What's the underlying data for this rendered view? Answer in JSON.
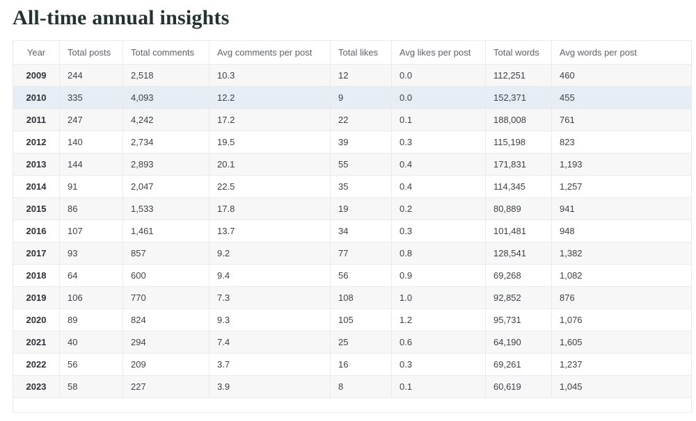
{
  "page": {
    "title": "All-time annual insights"
  },
  "chart_data": {
    "type": "table",
    "title": "All-time annual insights",
    "columns": [
      "Year",
      "Total posts",
      "Total comments",
      "Avg comments per post",
      "Total likes",
      "Avg likes per post",
      "Total words",
      "Avg words per post"
    ],
    "rows": [
      [
        "2009",
        "244",
        "2,518",
        "10.3",
        "12",
        "0.0",
        "112,251",
        "460"
      ],
      [
        "2010",
        "335",
        "4,093",
        "12.2",
        "9",
        "0.0",
        "152,371",
        "455"
      ],
      [
        "2011",
        "247",
        "4,242",
        "17.2",
        "22",
        "0.1",
        "188,008",
        "761"
      ],
      [
        "2012",
        "140",
        "2,734",
        "19.5",
        "39",
        "0.3",
        "115,198",
        "823"
      ],
      [
        "2013",
        "144",
        "2,893",
        "20.1",
        "55",
        "0.4",
        "171,831",
        "1,193"
      ],
      [
        "2014",
        "91",
        "2,047",
        "22.5",
        "35",
        "0.4",
        "114,345",
        "1,257"
      ],
      [
        "2015",
        "86",
        "1,533",
        "17.8",
        "19",
        "0.2",
        "80,889",
        "941"
      ],
      [
        "2016",
        "107",
        "1,461",
        "13.7",
        "34",
        "0.3",
        "101,481",
        "948"
      ],
      [
        "2017",
        "93",
        "857",
        "9.2",
        "77",
        "0.8",
        "128,541",
        "1,382"
      ],
      [
        "2018",
        "64",
        "600",
        "9.4",
        "56",
        "0.9",
        "69,268",
        "1,082"
      ],
      [
        "2019",
        "106",
        "770",
        "7.3",
        "108",
        "1.0",
        "92,852",
        "876"
      ],
      [
        "2020",
        "89",
        "824",
        "9.3",
        "105",
        "1.2",
        "95,731",
        "1,076"
      ],
      [
        "2021",
        "40",
        "294",
        "7.4",
        "25",
        "0.6",
        "64,190",
        "1,605"
      ],
      [
        "2022",
        "56",
        "209",
        "3.7",
        "16",
        "0.3",
        "69,261",
        "1,237"
      ],
      [
        "2023",
        "58",
        "227",
        "3.9",
        "8",
        "0.1",
        "60,619",
        "1,045"
      ]
    ],
    "highlighted_row_year": "2010",
    "layout": {
      "striped": true,
      "stripe_color": "#f7f7f8",
      "highlight_color": "#e6edf4",
      "border_color": "#eaeaec",
      "header_text_color": "#5d6269",
      "legend": "none",
      "grid": "full"
    }
  }
}
